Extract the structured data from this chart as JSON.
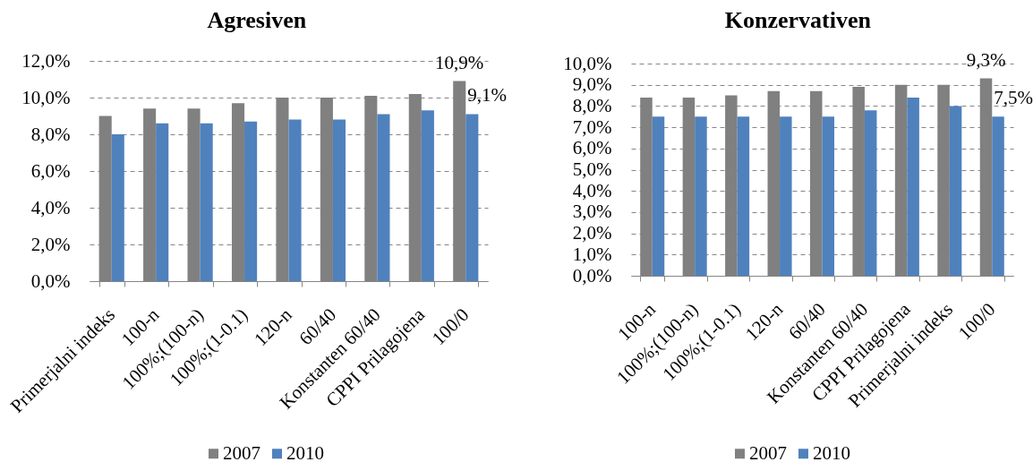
{
  "chart_data": [
    {
      "type": "bar",
      "title": "Agresiven",
      "categories": [
        "Primerjalni indeks",
        "100-n",
        "100%;(100-n)",
        "100%;(1-0.1)",
        "120-n",
        "60/40",
        "Konstanten 60/40",
        "CPPI Prilagojena",
        "100/0"
      ],
      "series": [
        {
          "name": "2007",
          "color": "#808080",
          "values": [
            9.0,
            9.4,
            9.4,
            9.7,
            10.0,
            10.0,
            10.1,
            10.2,
            10.9
          ],
          "value_labels": [
            null,
            null,
            null,
            null,
            null,
            null,
            null,
            null,
            "10,9%"
          ]
        },
        {
          "name": "2010",
          "color": "#4f81bd",
          "values": [
            8.0,
            8.6,
            8.6,
            8.7,
            8.8,
            8.8,
            9.1,
            9.3,
            9.1
          ],
          "value_labels": [
            null,
            null,
            null,
            null,
            null,
            null,
            null,
            null,
            "9,1%"
          ]
        }
      ],
      "ylim": [
        0,
        12
      ],
      "yticks": [
        {
          "value": 0,
          "label": "0,0%"
        },
        {
          "value": 2,
          "label": "2,0%"
        },
        {
          "value": 4,
          "label": "4,0%"
        },
        {
          "value": 6,
          "label": "6,0%"
        },
        {
          "value": 8,
          "label": "8,0%"
        },
        {
          "value": 10,
          "label": "10,0%"
        },
        {
          "value": 12,
          "label": "12,0%"
        }
      ],
      "grid": "y",
      "legend": "bottom"
    },
    {
      "type": "bar",
      "title": "Konzervativen",
      "categories": [
        "100-n",
        "100%;(100-n)",
        "100%;(1-0.1)",
        "120-n",
        "60/40",
        "Konstanten 60/40",
        "CPPI Prilagojena",
        "Primerjalni indeks",
        "100/0"
      ],
      "series": [
        {
          "name": "2007",
          "color": "#808080",
          "values": [
            8.4,
            8.4,
            8.5,
            8.7,
            8.7,
            8.9,
            9.0,
            9.0,
            9.3
          ],
          "value_labels": [
            null,
            null,
            null,
            null,
            null,
            null,
            null,
            null,
            "9,3%"
          ]
        },
        {
          "name": "2010",
          "color": "#4f81bd",
          "values": [
            7.5,
            7.5,
            7.5,
            7.5,
            7.5,
            7.8,
            8.4,
            8.0,
            7.5
          ],
          "value_labels": [
            null,
            null,
            null,
            null,
            null,
            null,
            null,
            null,
            "7,5%"
          ]
        }
      ],
      "ylim": [
        0,
        10
      ],
      "yticks": [
        {
          "value": 0,
          "label": "0,0%"
        },
        {
          "value": 1,
          "label": "1,0%"
        },
        {
          "value": 2,
          "label": "2,0%"
        },
        {
          "value": 3,
          "label": "3,0%"
        },
        {
          "value": 4,
          "label": "4,0%"
        },
        {
          "value": 5,
          "label": "5,0%"
        },
        {
          "value": 6,
          "label": "6,0%"
        },
        {
          "value": 7,
          "label": "7,0%"
        },
        {
          "value": 8,
          "label": "8,0%"
        },
        {
          "value": 9,
          "label": "9,0%"
        },
        {
          "value": 10,
          "label": "10,0%"
        }
      ],
      "grid": "y",
      "legend": "bottom"
    }
  ]
}
